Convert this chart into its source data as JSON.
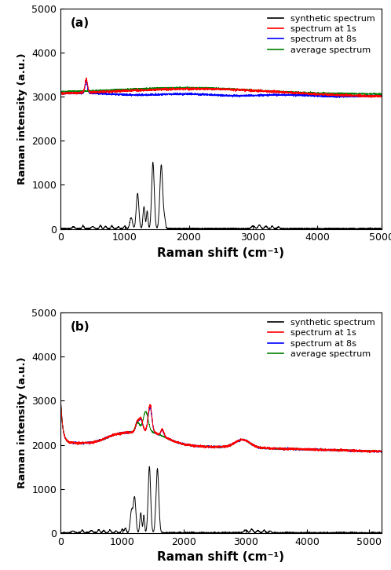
{
  "panel_a": {
    "label": "(a)",
    "xlim": [
      0,
      5000
    ],
    "ylim": [
      0,
      5000
    ],
    "xticks": [
      0,
      1000,
      2000,
      3000,
      4000,
      5000
    ],
    "yticks": [
      0,
      1000,
      2000,
      3000,
      4000,
      5000
    ],
    "xlabel": "Raman shift (cm⁻¹)",
    "ylabel": "Raman intensity (a.u.)",
    "legend": [
      "synthetic spectrum",
      "spectrum at 1s",
      "spectrum at 8s",
      "average spectrum"
    ],
    "legend_colors": [
      "black",
      "red",
      "blue",
      "green"
    ]
  },
  "panel_b": {
    "label": "(b)",
    "xlim": [
      0,
      5200
    ],
    "ylim": [
      0,
      5000
    ],
    "xticks": [
      0,
      1000,
      2000,
      3000,
      4000,
      5000
    ],
    "yticks": [
      0,
      1000,
      2000,
      3000,
      4000,
      5000
    ],
    "xlabel": "Raman shift (cm⁻¹)",
    "ylabel": "Raman intensity (a.u.)",
    "legend": [
      "synthetic spectrum",
      "spectrum at 1s",
      "spectrum at 8s",
      "average spectrum"
    ],
    "legend_colors": [
      "black",
      "red",
      "blue",
      "green"
    ]
  },
  "fig_bgcolor": "#ffffff",
  "axes_bgcolor": "#ffffff"
}
